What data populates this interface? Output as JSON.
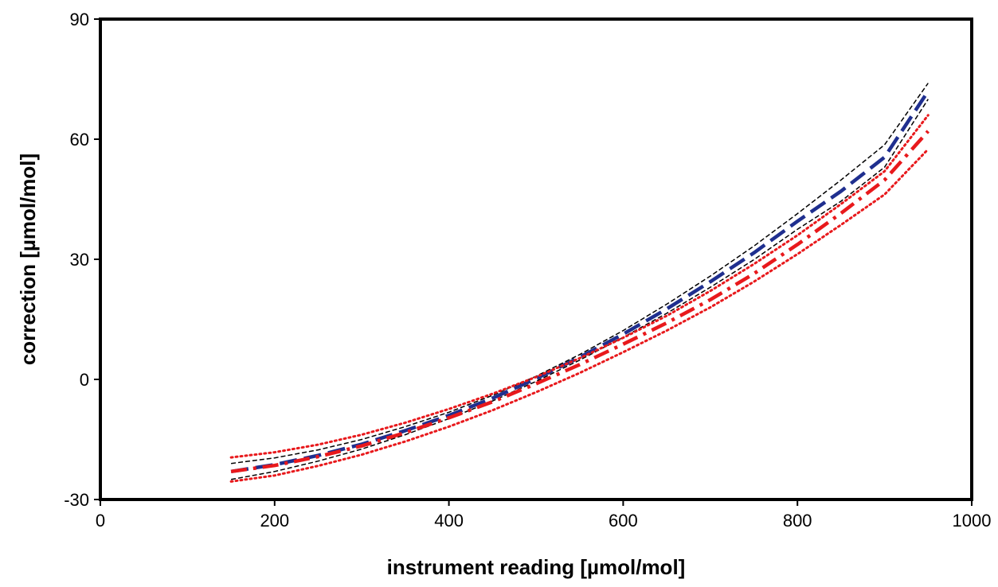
{
  "chart_data": {
    "type": "line",
    "title": "",
    "xlabel": "instrument reading [µmol/mol]",
    "ylabel": "correction [µmol/mol]",
    "xlim": [
      0,
      1000
    ],
    "ylim": [
      -30,
      90
    ],
    "xticks": [
      0,
      200,
      400,
      600,
      800,
      1000
    ],
    "yticks": [
      -30,
      0,
      30,
      60,
      90
    ],
    "grid": false,
    "legend": "none",
    "x": [
      150,
      200,
      250,
      300,
      350,
      400,
      450,
      500,
      550,
      600,
      650,
      700,
      750,
      800,
      850,
      900,
      950
    ],
    "series": [
      {
        "color": "#1f2f8f",
        "style": "dashed-thick",
        "values": [
          -23.0,
          -21.3,
          -19.0,
          -16.2,
          -12.8,
          -9.0,
          -4.7,
          0.2,
          5.5,
          11.3,
          17.6,
          24.4,
          31.6,
          39.5,
          47.0,
          55.5,
          72.0
        ]
      },
      {
        "color": "#000000",
        "style": "dashed-thin",
        "values": [
          -21.0,
          -19.6,
          -17.6,
          -15.0,
          -11.8,
          -8.2,
          -4.0,
          0.8,
          6.2,
          12.2,
          18.8,
          25.8,
          33.3,
          41.4,
          49.8,
          58.6,
          74.0
        ]
      },
      {
        "color": "#000000",
        "style": "dashed-thin",
        "values": [
          -25.0,
          -23.0,
          -20.4,
          -17.4,
          -13.8,
          -9.8,
          -5.4,
          -0.5,
          4.8,
          10.5,
          16.5,
          23.0,
          29.9,
          37.5,
          44.5,
          53.0,
          70.0
        ]
      },
      {
        "color": "#e8191c",
        "style": "dash-dot-thick",
        "values": [
          -23.0,
          -21.5,
          -19.3,
          -16.6,
          -13.3,
          -9.6,
          -5.6,
          -1.1,
          3.7,
          8.8,
          14.1,
          19.9,
          26.4,
          33.7,
          41.5,
          49.8,
          62.0
        ]
      },
      {
        "color": "#e8191c",
        "style": "dotted",
        "values": [
          -19.5,
          -18.2,
          -16.3,
          -13.8,
          -10.8,
          -7.4,
          -3.6,
          0.6,
          5.3,
          10.4,
          15.9,
          22.1,
          28.8,
          36.0,
          43.8,
          52.0,
          66.0
        ]
      },
      {
        "color": "#e8191c",
        "style": "dotted",
        "values": [
          -25.5,
          -24.0,
          -21.6,
          -18.8,
          -15.5,
          -11.8,
          -7.7,
          -3.2,
          1.6,
          6.8,
          12.2,
          18.0,
          24.4,
          31.3,
          38.6,
          46.2,
          57.5
        ]
      }
    ]
  }
}
